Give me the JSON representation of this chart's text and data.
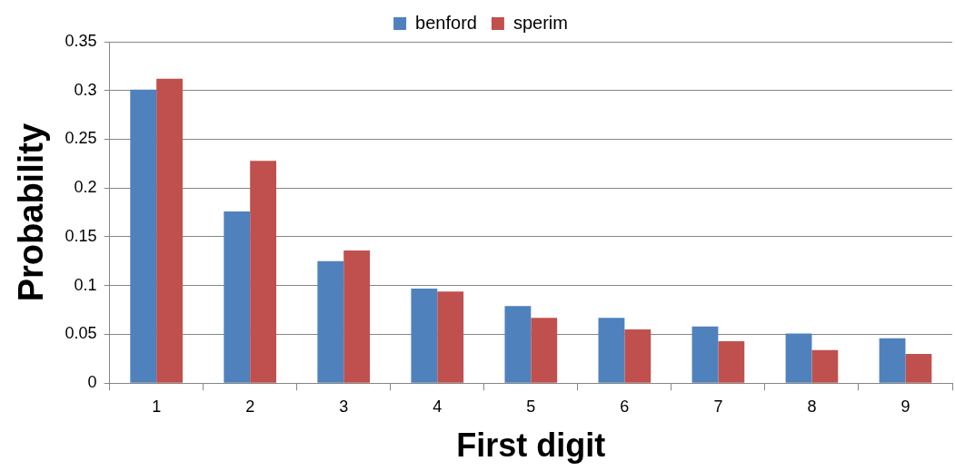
{
  "chart_data": {
    "type": "bar",
    "xlabel": "First digit",
    "ylabel": "Probability",
    "categories": [
      "1",
      "2",
      "3",
      "4",
      "5",
      "6",
      "7",
      "8",
      "9"
    ],
    "series": [
      {
        "name": "benford",
        "color": "#4f81bd",
        "values": [
          0.301,
          0.176,
          0.125,
          0.097,
          0.079,
          0.067,
          0.058,
          0.051,
          0.046
        ]
      },
      {
        "name": "sperim",
        "color": "#c0504d",
        "values": [
          0.312,
          0.228,
          0.136,
          0.094,
          0.067,
          0.055,
          0.043,
          0.034,
          0.03
        ]
      }
    ],
    "ylim": [
      0,
      0.35
    ],
    "yticks": [
      0,
      0.05,
      0.1,
      0.15,
      0.2,
      0.25,
      0.3,
      0.35
    ],
    "grid": "y",
    "legend": "top"
  }
}
